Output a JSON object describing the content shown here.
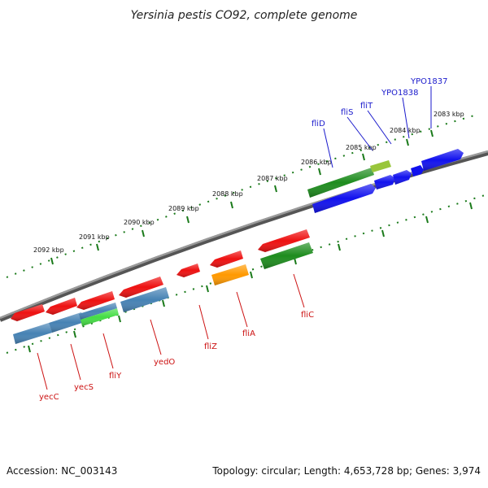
{
  "title": "Yersinia pestis CO92, complete genome",
  "footer": {
    "accession": "Accession: NC_003143",
    "summary": "Topology: circular; Length: 4,653,728 bp; Genes: 3,974"
  },
  "colors": {
    "backbone": "#808080",
    "ticks": "#1a7a1a",
    "forward_label": "#1a1acc",
    "reverse_label": "#cc1111",
    "red": "#ee1111",
    "steelblue": "#4682b4",
    "green": "#1e8c1e",
    "lightgreen": "#44dd44",
    "blue": "#1111ee",
    "orange": "#ff9900",
    "yellowgreen": "#aadd44"
  },
  "ticks": [
    {
      "label": "2083 kbp"
    },
    {
      "label": "2084 kbp"
    },
    {
      "label": "2085 kbp"
    },
    {
      "label": "2086 kbp"
    },
    {
      "label": "2087 kbp"
    },
    {
      "label": "2088 kbp"
    },
    {
      "label": "2089 kbp"
    },
    {
      "label": "2090 kbp"
    },
    {
      "label": "2091 kbp"
    },
    {
      "label": "2092 kbp"
    }
  ],
  "gene_labels": {
    "forward": [
      "fliD",
      "fliS",
      "fliT",
      "YPO1838",
      "YPO1837"
    ],
    "reverse": [
      "yecC",
      "yecS",
      "fliY",
      "yedO",
      "fliZ",
      "fliA",
      "fliC"
    ]
  }
}
